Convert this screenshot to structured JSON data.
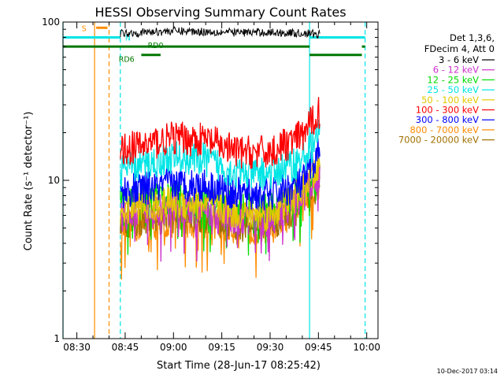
{
  "chart_data": {
    "type": "line",
    "title": "HESSI Observing Summary Count Rates",
    "xlabel": "Start Time (28-Jun-17 08:25:42)",
    "ylabel": "Count Rate (s⁻¹ detector⁻¹)",
    "footer": "10-Dec-2017 03:14",
    "x_range": [
      "08:25:42",
      "10:03:30"
    ],
    "ylim": [
      1,
      100
    ],
    "yscale": "log",
    "x_ticks": [
      "08:30",
      "08:45",
      "09:00",
      "09:15",
      "09:30",
      "09:45",
      "10:00"
    ],
    "y_ticks": [
      "1",
      "10",
      "100"
    ],
    "legend_header": [
      "Det 1,3,6,",
      "FDecim 4, Att 0"
    ],
    "legend_position": "right",
    "series": [
      {
        "name": "3 - 6 keV",
        "color": "#000000",
        "x": [
          "08:43",
          "08:50",
          "09:00",
          "09:10",
          "09:20",
          "09:30",
          "09:40",
          "09:45"
        ],
        "y": [
          85,
          86,
          88,
          87,
          86,
          86,
          85,
          84
        ]
      },
      {
        "name": "6 - 12 keV",
        "color": "#cc33cc",
        "x": [
          "08:43",
          "08:50",
          "09:00",
          "09:10",
          "09:20",
          "09:30",
          "09:40",
          "09:45"
        ],
        "y": [
          6.0,
          6.2,
          6.6,
          6.5,
          5.7,
          5.6,
          8.0,
          10.0
        ]
      },
      {
        "name": "12 - 25 keV",
        "color": "#00dd00",
        "x": [
          "08:43",
          "08:50",
          "09:00",
          "09:10",
          "09:20",
          "09:30",
          "09:40",
          "09:45"
        ],
        "y": [
          7.0,
          7.3,
          7.7,
          7.6,
          6.6,
          6.5,
          8.5,
          11.0
        ]
      },
      {
        "name": "25 - 50 keV",
        "color": "#00e5e5",
        "x": [
          "08:43",
          "08:50",
          "09:00",
          "09:10",
          "09:20",
          "09:30",
          "09:40",
          "09:45"
        ],
        "y": [
          11.5,
          12.5,
          14.0,
          13.5,
          11.0,
          11.0,
          13.5,
          19.0
        ]
      },
      {
        "name": "50 - 100 keV",
        "color": "#e5c800",
        "x": [
          "08:43",
          "08:50",
          "09:00",
          "09:10",
          "09:20",
          "09:30",
          "09:40",
          "09:45"
        ],
        "y": [
          6.5,
          6.8,
          7.2,
          7.1,
          6.2,
          6.1,
          8.5,
          12.0
        ]
      },
      {
        "name": "100 - 300 keV",
        "color": "#ff0000",
        "x": [
          "08:43",
          "08:50",
          "09:00",
          "09:10",
          "09:20",
          "09:30",
          "09:40",
          "09:45"
        ],
        "y": [
          15.5,
          16.5,
          18.5,
          18.0,
          15.0,
          15.0,
          19.0,
          27.0
        ]
      },
      {
        "name": "300 - 800 keV",
        "color": "#0000ff",
        "x": [
          "08:43",
          "08:50",
          "09:00",
          "09:10",
          "09:20",
          "09:30",
          "09:40",
          "09:45"
        ],
        "y": [
          8.5,
          8.8,
          9.5,
          9.3,
          8.2,
          8.1,
          9.5,
          15.0
        ]
      },
      {
        "name": "800 - 7000 keV",
        "color": "#ff8c00",
        "x": [
          "08:43",
          "08:50",
          "09:00",
          "09:10",
          "09:20",
          "09:30",
          "09:40",
          "09:45"
        ],
        "y": [
          5.0,
          5.2,
          5.5,
          5.4,
          5.0,
          5.0,
          7.0,
          9.0
        ]
      },
      {
        "name": "7000 - 20000 keV",
        "color": "#a07000",
        "x": [
          "08:43",
          "08:50",
          "09:00",
          "09:10",
          "09:20",
          "09:30",
          "09:40",
          "09:45"
        ],
        "y": [
          5.5,
          5.6,
          5.9,
          5.8,
          5.2,
          5.2,
          7.0,
          9.5
        ]
      }
    ],
    "vertical_lines": [
      {
        "time": "08:25:42",
        "color": "#00e5e5",
        "style": "solid"
      },
      {
        "time": "08:35:30",
        "color": "#ff8c00",
        "style": "solid"
      },
      {
        "time": "08:40:00",
        "color": "#ff8c00",
        "style": "dashed"
      },
      {
        "time": "08:43:30",
        "color": "#00e5e5",
        "style": "dashed"
      },
      {
        "time": "09:42:15",
        "color": "#00e5e5",
        "style": "solid"
      },
      {
        "time": "09:59:30",
        "color": "#00e5e5",
        "style": "dashed"
      }
    ],
    "flag_bars": [
      {
        "label": "S",
        "color": "#ff8c00",
        "y": 92,
        "segments": [
          [
            "08:36:00",
            "08:39:30"
          ]
        ]
      },
      {
        "label": "N",
        "color": "#00e5e5",
        "y": 80,
        "segments": [
          [
            "08:25:42",
            "08:43:30"
          ],
          [
            "09:42:15",
            "09:59:30"
          ]
        ]
      },
      {
        "label": "RD0",
        "color": "#007700",
        "y": 70,
        "segments": [
          [
            "08:25:42",
            "09:42:15"
          ],
          [
            "09:58:30",
            "09:59:30"
          ]
        ]
      },
      {
        "label": "RD6",
        "color": "#007700",
        "y": 62,
        "segments": [
          [
            "08:50:00",
            "08:56:00"
          ],
          [
            "09:42:15",
            "09:58:30"
          ]
        ]
      }
    ]
  }
}
